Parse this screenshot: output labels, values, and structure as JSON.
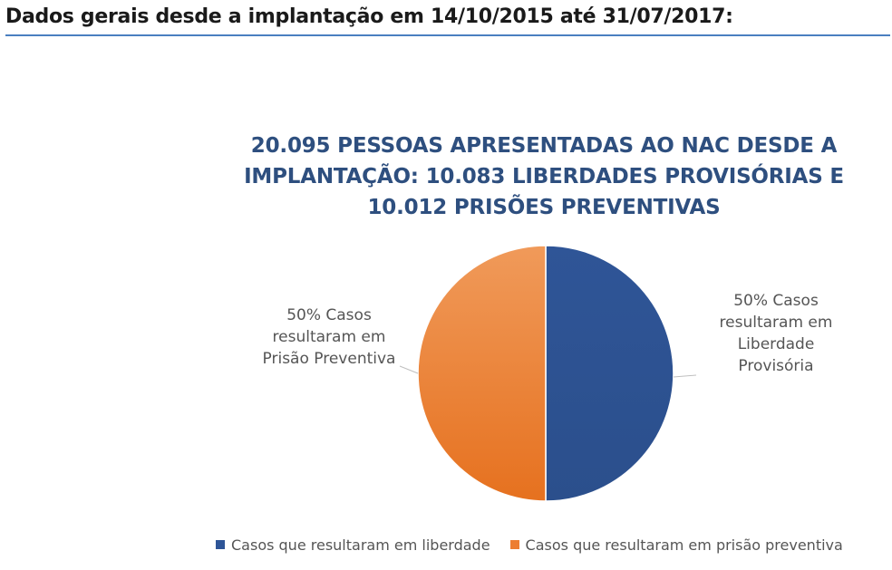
{
  "header": {
    "title": "Dados gerais desde a implantação em 14/10/2015 até 31/07/2017:"
  },
  "chart_data": {
    "type": "pie",
    "title_lines": [
      "20.095 PESSOAS APRESENTADAS AO NAC DESDE A",
      "IMPLANTAÇÃO: 10.083 LIBERDADES PROVISÓRIAS E",
      "10.012 PRISÕES PREVENTIVAS"
    ],
    "slices": [
      {
        "name": "Casos que resultaram em liberdade",
        "value": 50,
        "color": "#2e5597",
        "label_lines": [
          "50% Casos",
          "resultaram em",
          "Liberdade",
          "Provisória"
        ]
      },
      {
        "name": "Casos que resultaram em prisão preventiva",
        "value": 50,
        "color": "#ed7d31",
        "label_lines": [
          "50% Casos",
          "resultaram em",
          "Prisão Preventiva"
        ]
      }
    ],
    "legend_position": "bottom"
  }
}
